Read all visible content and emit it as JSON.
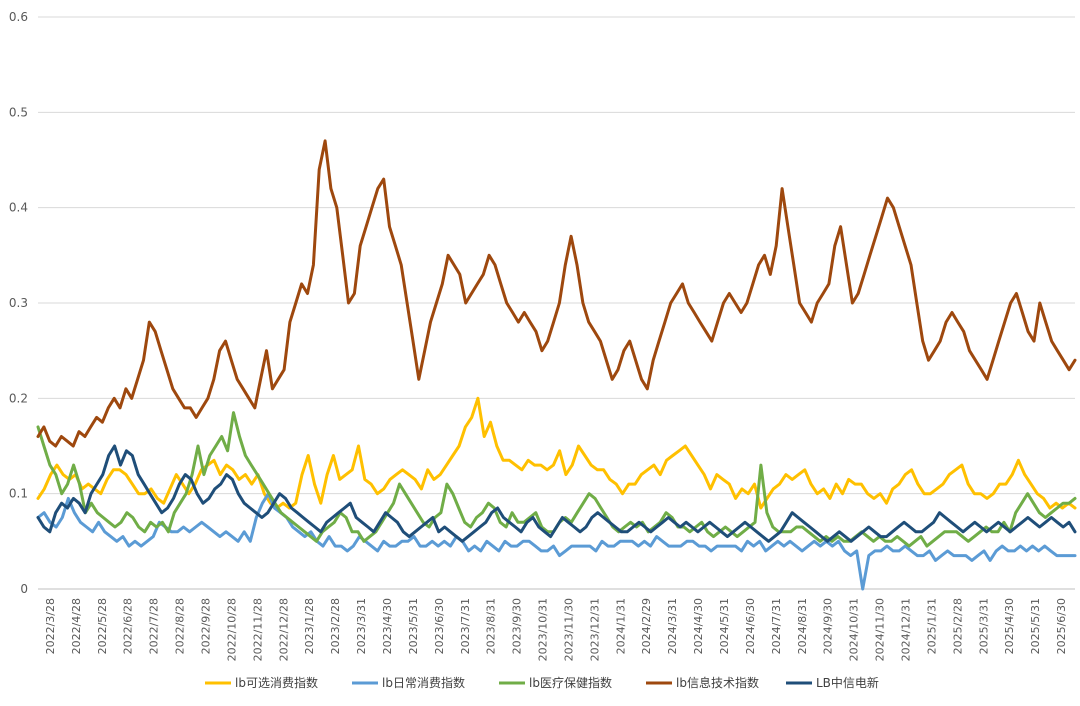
{
  "chart_data": {
    "type": "line",
    "title": "",
    "xlabel": "",
    "ylabel": "",
    "ylim": [
      0,
      0.6
    ],
    "yticks": [
      "0",
      "0.1",
      "0.2",
      "0.3",
      "0.4",
      "0.5",
      "0.6"
    ],
    "grid": true,
    "legend_position": "bottom",
    "x_tick_labels": [
      "2022/3/28",
      "2022/4/28",
      "2022/5/28",
      "2022/6/28",
      "2022/7/28",
      "2022/8/28",
      "2022/9/28",
      "2022/10/28",
      "2022/11/28",
      "2022/12/28",
      "2023/1/28",
      "2023/2/28",
      "2023/3/31",
      "2023/4/30",
      "2023/5/31",
      "2023/6/30",
      "2023/7/31",
      "2023/8/31",
      "2023/9/30",
      "2023/10/31",
      "2023/11/30",
      "2023/12/31",
      "2024/1/31",
      "2024/2/29",
      "2024/3/31",
      "2024/4/30",
      "2024/5/31",
      "2024/6/30",
      "2024/7/31",
      "2024/8/31",
      "2024/9/30",
      "2024/10/31",
      "2024/11/30",
      "2024/12/31",
      "2025/1/31",
      "2025/2/28",
      "2025/3/31",
      "2025/4/30",
      "2025/5/31",
      "2025/6/30"
    ],
    "series": [
      {
        "name": "lb可选消费指数",
        "color": "#FFC000",
        "values": [
          0.095,
          0.105,
          0.12,
          0.13,
          0.12,
          0.115,
          0.12,
          0.105,
          0.11,
          0.105,
          0.1,
          0.115,
          0.125,
          0.125,
          0.12,
          0.11,
          0.1,
          0.1,
          0.105,
          0.095,
          0.09,
          0.105,
          0.12,
          0.11,
          0.1,
          0.11,
          0.125,
          0.13,
          0.135,
          0.12,
          0.13,
          0.125,
          0.115,
          0.12,
          0.11,
          0.12,
          0.1,
          0.09,
          0.085,
          0.09,
          0.085,
          0.09,
          0.12,
          0.14,
          0.11,
          0.09,
          0.12,
          0.14,
          0.115,
          0.12,
          0.125,
          0.15,
          0.115,
          0.11,
          0.1,
          0.105,
          0.115,
          0.12,
          0.125,
          0.12,
          0.115,
          0.105,
          0.125,
          0.115,
          0.12,
          0.13,
          0.14,
          0.15,
          0.17,
          0.18,
          0.2,
          0.16,
          0.175,
          0.15,
          0.135,
          0.135,
          0.13,
          0.125,
          0.135,
          0.13,
          0.13,
          0.125,
          0.13,
          0.145,
          0.12,
          0.13,
          0.15,
          0.14,
          0.13,
          0.125,
          0.125,
          0.115,
          0.11,
          0.1,
          0.11,
          0.11,
          0.12,
          0.125,
          0.13,
          0.12,
          0.135,
          0.14,
          0.145,
          0.15,
          0.14,
          0.13,
          0.12,
          0.105,
          0.12,
          0.115,
          0.11,
          0.095,
          0.105,
          0.1,
          0.11,
          0.085,
          0.095,
          0.105,
          0.11,
          0.12,
          0.115,
          0.12,
          0.125,
          0.11,
          0.1,
          0.105,
          0.095,
          0.11,
          0.1,
          0.115,
          0.11,
          0.11,
          0.1,
          0.095,
          0.1,
          0.09,
          0.105,
          0.11,
          0.12,
          0.125,
          0.11,
          0.1,
          0.1,
          0.105,
          0.11,
          0.12,
          0.125,
          0.13,
          0.11,
          0.1,
          0.1,
          0.095,
          0.1,
          0.11,
          0.11,
          0.12,
          0.135,
          0.12,
          0.11,
          0.1,
          0.095,
          0.085,
          0.09,
          0.085,
          0.09,
          0.085
        ]
      },
      {
        "name": "lb日常消费指数",
        "color": "#5B9BD5",
        "values": [
          0.075,
          0.08,
          0.07,
          0.065,
          0.075,
          0.095,
          0.08,
          0.07,
          0.065,
          0.06,
          0.07,
          0.06,
          0.055,
          0.05,
          0.055,
          0.045,
          0.05,
          0.045,
          0.05,
          0.055,
          0.07,
          0.065,
          0.06,
          0.06,
          0.065,
          0.06,
          0.065,
          0.07,
          0.065,
          0.06,
          0.055,
          0.06,
          0.055,
          0.05,
          0.06,
          0.05,
          0.075,
          0.09,
          0.1,
          0.085,
          0.08,
          0.075,
          0.065,
          0.06,
          0.055,
          0.06,
          0.05,
          0.045,
          0.055,
          0.045,
          0.045,
          0.04,
          0.045,
          0.055,
          0.05,
          0.045,
          0.04,
          0.05,
          0.045,
          0.045,
          0.05,
          0.05,
          0.055,
          0.045,
          0.045,
          0.05,
          0.045,
          0.05,
          0.045,
          0.055,
          0.05,
          0.04,
          0.045,
          0.04,
          0.05,
          0.045,
          0.04,
          0.05,
          0.045,
          0.045,
          0.05,
          0.05,
          0.045,
          0.04,
          0.04,
          0.045,
          0.035,
          0.04,
          0.045,
          0.045,
          0.045,
          0.045,
          0.04,
          0.05,
          0.045,
          0.045,
          0.05,
          0.05,
          0.05,
          0.045,
          0.05,
          0.045,
          0.055,
          0.05,
          0.045,
          0.045,
          0.045,
          0.05,
          0.05,
          0.045,
          0.045,
          0.04,
          0.045,
          0.045,
          0.045,
          0.045,
          0.04,
          0.05,
          0.045,
          0.05,
          0.04,
          0.045,
          0.05,
          0.045,
          0.05,
          0.045,
          0.04,
          0.045,
          0.05,
          0.045,
          0.05,
          0.045,
          0.05,
          0.04,
          0.035,
          0.04,
          0.0,
          0.035,
          0.04,
          0.04,
          0.045,
          0.04,
          0.04,
          0.045,
          0.04,
          0.035,
          0.035,
          0.04,
          0.03,
          0.035,
          0.04,
          0.035,
          0.035,
          0.035,
          0.03,
          0.035,
          0.04,
          0.03,
          0.04,
          0.045,
          0.04,
          0.04,
          0.045,
          0.04,
          0.045,
          0.04,
          0.045,
          0.04,
          0.035,
          0.035,
          0.035,
          0.035
        ]
      },
      {
        "name": "lb医疗保健指数",
        "color": "#70AD47",
        "values": [
          0.17,
          0.15,
          0.13,
          0.12,
          0.1,
          0.11,
          0.13,
          0.11,
          0.08,
          0.09,
          0.08,
          0.075,
          0.07,
          0.065,
          0.07,
          0.08,
          0.075,
          0.065,
          0.06,
          0.07,
          0.065,
          0.07,
          0.06,
          0.08,
          0.09,
          0.1,
          0.12,
          0.15,
          0.12,
          0.14,
          0.15,
          0.16,
          0.145,
          0.185,
          0.16,
          0.14,
          0.13,
          0.12,
          0.11,
          0.1,
          0.09,
          0.08,
          0.075,
          0.07,
          0.065,
          0.06,
          0.055,
          0.05,
          0.06,
          0.065,
          0.07,
          0.08,
          0.075,
          0.06,
          0.06,
          0.05,
          0.055,
          0.06,
          0.07,
          0.08,
          0.09,
          0.11,
          0.1,
          0.09,
          0.08,
          0.07,
          0.065,
          0.075,
          0.08,
          0.11,
          0.1,
          0.085,
          0.07,
          0.065,
          0.075,
          0.08,
          0.09,
          0.085,
          0.07,
          0.065,
          0.08,
          0.07,
          0.07,
          0.075,
          0.08,
          0.065,
          0.06,
          0.06,
          0.07,
          0.075,
          0.07,
          0.08,
          0.09,
          0.1,
          0.095,
          0.085,
          0.075,
          0.065,
          0.06,
          0.065,
          0.07,
          0.065,
          0.07,
          0.06,
          0.065,
          0.07,
          0.08,
          0.075,
          0.065,
          0.065,
          0.06,
          0.065,
          0.07,
          0.06,
          0.055,
          0.06,
          0.065,
          0.06,
          0.055,
          0.06,
          0.065,
          0.07,
          0.13,
          0.08,
          0.065,
          0.06,
          0.06,
          0.06,
          0.065,
          0.065,
          0.06,
          0.055,
          0.05,
          0.055,
          0.05,
          0.055,
          0.05,
          0.05,
          0.055,
          0.06,
          0.055,
          0.05,
          0.055,
          0.05,
          0.05,
          0.055,
          0.05,
          0.045,
          0.05,
          0.055,
          0.045,
          0.05,
          0.055,
          0.06,
          0.06,
          0.06,
          0.055,
          0.05,
          0.055,
          0.06,
          0.065,
          0.06,
          0.06,
          0.07,
          0.06,
          0.08,
          0.09,
          0.1,
          0.09,
          0.08,
          0.075,
          0.08,
          0.085,
          0.09,
          0.09,
          0.095
        ]
      },
      {
        "name": "lb信息技术指数",
        "color": "#9E480E",
        "values": [
          0.16,
          0.17,
          0.155,
          0.15,
          0.16,
          0.155,
          0.15,
          0.165,
          0.16,
          0.17,
          0.18,
          0.175,
          0.19,
          0.2,
          0.19,
          0.21,
          0.2,
          0.22,
          0.24,
          0.28,
          0.27,
          0.25,
          0.23,
          0.21,
          0.2,
          0.19,
          0.19,
          0.18,
          0.19,
          0.2,
          0.22,
          0.25,
          0.26,
          0.24,
          0.22,
          0.21,
          0.2,
          0.19,
          0.22,
          0.25,
          0.21,
          0.22,
          0.23,
          0.28,
          0.3,
          0.32,
          0.31,
          0.34,
          0.44,
          0.47,
          0.42,
          0.4,
          0.35,
          0.3,
          0.31,
          0.36,
          0.38,
          0.4,
          0.42,
          0.43,
          0.38,
          0.36,
          0.34,
          0.3,
          0.26,
          0.22,
          0.25,
          0.28,
          0.3,
          0.32,
          0.35,
          0.34,
          0.33,
          0.3,
          0.31,
          0.32,
          0.33,
          0.35,
          0.34,
          0.32,
          0.3,
          0.29,
          0.28,
          0.29,
          0.28,
          0.27,
          0.25,
          0.26,
          0.28,
          0.3,
          0.34,
          0.37,
          0.34,
          0.3,
          0.28,
          0.27,
          0.26,
          0.24,
          0.22,
          0.23,
          0.25,
          0.26,
          0.24,
          0.22,
          0.21,
          0.24,
          0.26,
          0.28,
          0.3,
          0.31,
          0.32,
          0.3,
          0.29,
          0.28,
          0.27,
          0.26,
          0.28,
          0.3,
          0.31,
          0.3,
          0.29,
          0.3,
          0.32,
          0.34,
          0.35,
          0.33,
          0.36,
          0.42,
          0.38,
          0.34,
          0.3,
          0.29,
          0.28,
          0.3,
          0.31,
          0.32,
          0.36,
          0.38,
          0.34,
          0.3,
          0.31,
          0.33,
          0.35,
          0.37,
          0.39,
          0.41,
          0.4,
          0.38,
          0.36,
          0.34,
          0.3,
          0.26,
          0.24,
          0.25,
          0.26,
          0.28,
          0.29,
          0.28,
          0.27,
          0.25,
          0.24,
          0.23,
          0.22,
          0.24,
          0.26,
          0.28,
          0.3,
          0.31,
          0.29,
          0.27,
          0.26,
          0.3,
          0.28,
          0.26,
          0.25,
          0.24,
          0.23,
          0.24
        ]
      },
      {
        "name": "LB中信电新",
        "color": "#1F4E79",
        "values": [
          0.075,
          0.065,
          0.06,
          0.08,
          0.09,
          0.085,
          0.095,
          0.09,
          0.08,
          0.1,
          0.11,
          0.12,
          0.14,
          0.15,
          0.13,
          0.145,
          0.14,
          0.12,
          0.11,
          0.1,
          0.09,
          0.08,
          0.085,
          0.095,
          0.11,
          0.12,
          0.115,
          0.1,
          0.09,
          0.095,
          0.105,
          0.11,
          0.12,
          0.115,
          0.1,
          0.09,
          0.085,
          0.08,
          0.075,
          0.08,
          0.09,
          0.1,
          0.095,
          0.085,
          0.08,
          0.075,
          0.07,
          0.065,
          0.06,
          0.07,
          0.075,
          0.08,
          0.085,
          0.09,
          0.075,
          0.07,
          0.065,
          0.06,
          0.07,
          0.08,
          0.075,
          0.07,
          0.06,
          0.055,
          0.06,
          0.065,
          0.07,
          0.075,
          0.06,
          0.065,
          0.06,
          0.055,
          0.05,
          0.055,
          0.06,
          0.065,
          0.07,
          0.08,
          0.085,
          0.075,
          0.07,
          0.065,
          0.06,
          0.07,
          0.075,
          0.065,
          0.06,
          0.055,
          0.065,
          0.075,
          0.07,
          0.065,
          0.06,
          0.065,
          0.075,
          0.08,
          0.075,
          0.07,
          0.065,
          0.06,
          0.06,
          0.065,
          0.07,
          0.065,
          0.06,
          0.065,
          0.07,
          0.075,
          0.07,
          0.065,
          0.07,
          0.065,
          0.06,
          0.065,
          0.07,
          0.065,
          0.06,
          0.055,
          0.06,
          0.065,
          0.07,
          0.065,
          0.06,
          0.055,
          0.05,
          0.055,
          0.06,
          0.07,
          0.08,
          0.075,
          0.07,
          0.065,
          0.06,
          0.055,
          0.05,
          0.055,
          0.06,
          0.055,
          0.05,
          0.055,
          0.06,
          0.065,
          0.06,
          0.055,
          0.055,
          0.06,
          0.065,
          0.07,
          0.065,
          0.06,
          0.06,
          0.065,
          0.07,
          0.08,
          0.075,
          0.07,
          0.065,
          0.06,
          0.065,
          0.07,
          0.065,
          0.06,
          0.065,
          0.07,
          0.065,
          0.06,
          0.065,
          0.07,
          0.075,
          0.07,
          0.065,
          0.07,
          0.075,
          0.07,
          0.065,
          0.07,
          0.06
        ]
      }
    ]
  }
}
